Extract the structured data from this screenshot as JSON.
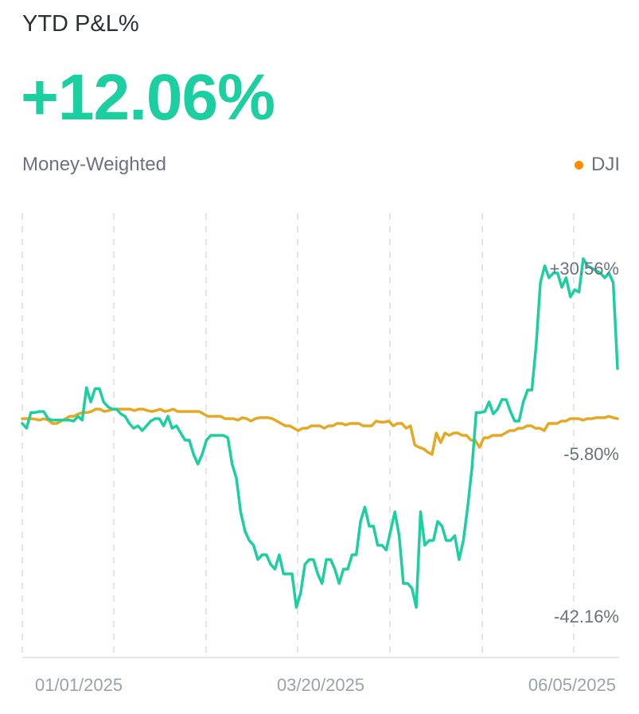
{
  "header": {
    "title": "YTD P&L%",
    "value": "+12.06%",
    "subtitle": "Money-Weighted",
    "legend_label": "DJI"
  },
  "colors": {
    "portfolio": "#1ccfa0",
    "benchmark": "#e5a823",
    "legend_dot": "#ff8c00",
    "grid": "#e3e5ea"
  },
  "chart_data": {
    "type": "line",
    "x_ticks": [
      "01/01/2025",
      "03/20/2025",
      "06/05/2025"
    ],
    "y_ticks": [
      "+30.56%",
      "-5.80%",
      "-42.16%"
    ],
    "y_tick_values": [
      30.56,
      -5.8,
      -42.16
    ],
    "grid": "vertical-dashed",
    "legend": "top-right",
    "series": [
      {
        "name": "",
        "color": "#1ccfa0",
        "values": [
          -1.5,
          -2.5,
          0.8,
          0.8,
          1.0,
          1.0,
          -0.5,
          -0.8,
          -0.8,
          -0.8,
          -0.8,
          -0.8,
          -1.0,
          0.0,
          -0.8,
          6.0,
          3.0,
          5.8,
          5.8,
          3.0,
          2.0,
          1.5,
          1.5,
          0.5,
          0.0,
          -1.5,
          -2.5,
          -2.0,
          -3.0,
          -2.0,
          -1.0,
          -0.5,
          -0.5,
          -2.0,
          0.0,
          -2.5,
          -2.0,
          -3.5,
          -5.0,
          -5.0,
          -8.0,
          -10.0,
          -8.0,
          -5.0,
          -4.0,
          -4.0,
          -4.0,
          -4.0,
          -4.5,
          -10.0,
          -13.0,
          -20.0,
          -24.0,
          -26.0,
          -27.0,
          -30.0,
          -29.0,
          -29.0,
          -31.0,
          -32.0,
          -29.0,
          -33.0,
          -33.0,
          -33.0,
          -40.0,
          -37.0,
          -31.0,
          -30.0,
          -30.0,
          -33.0,
          -35.0,
          -30.0,
          -30.0,
          -32.0,
          -35.0,
          -32.0,
          -32.0,
          -29.0,
          -29.0,
          -22.0,
          -19.0,
          -23.0,
          -23.0,
          -27.0,
          -27.0,
          -28.0,
          -24.0,
          -20.0,
          -25.0,
          -35.0,
          -35.0,
          -36.0,
          -40.0,
          -20.0,
          -27.0,
          -26.0,
          -26.0,
          -22.0,
          -23.0,
          -26.0,
          -26.0,
          -25.0,
          -30.0,
          -26.0,
          -19.0,
          -11.0,
          0.8,
          0.8,
          1.0,
          3.0,
          0.5,
          1.5,
          3.5,
          3.5,
          1.0,
          -1.0,
          -1.0,
          3.0,
          5.5,
          5.5,
          15.0,
          28.0,
          31.5,
          29.0,
          30.0,
          30.0,
          27.0,
          29.0,
          25.0,
          26.5,
          26.0,
          33.0,
          31.5,
          31.0,
          30.5,
          30.0,
          29.0,
          30.0,
          28.0,
          10.0
        ]
      },
      {
        "name": "DJI",
        "color": "#e5a823",
        "values": [
          -0.5,
          -0.5,
          -0.5,
          -0.6,
          -0.8,
          -0.5,
          -0.8,
          -1.5,
          -1.5,
          -1.0,
          -0.5,
          0.0,
          0.0,
          0.5,
          0.8,
          0.8,
          1.0,
          1.5,
          1.5,
          1.0,
          1.2,
          1.5,
          1.5,
          1.5,
          1.5,
          1.5,
          1.2,
          1.5,
          1.5,
          1.2,
          1.0,
          1.2,
          1.5,
          1.0,
          1.2,
          1.5,
          1.0,
          1.0,
          1.0,
          1.0,
          1.0,
          1.0,
          0.5,
          0.0,
          0.0,
          0.0,
          0.0,
          -0.5,
          -0.5,
          -0.5,
          -0.8,
          -0.3,
          -0.5,
          -1.0,
          -0.5,
          -0.3,
          -0.3,
          -0.3,
          -0.5,
          -1.0,
          -1.5,
          -2.0,
          -2.0,
          -2.5,
          -3.0,
          -2.5,
          -2.5,
          -2.0,
          -2.0,
          -2.0,
          -2.5,
          -2.0,
          -2.0,
          -1.5,
          -1.5,
          -1.8,
          -1.5,
          -1.5,
          -1.5,
          -2.0,
          -2.0,
          -2.0,
          -1.0,
          -1.2,
          -1.2,
          -1.0,
          -2.0,
          -1.5,
          -1.5,
          -2.5,
          -2.0,
          -6.0,
          -6.5,
          -6.8,
          -7.5,
          -8.0,
          -3.5,
          -5.5,
          -3.5,
          -4.0,
          -3.5,
          -3.5,
          -4.0,
          -4.0,
          -5.0,
          -5.0,
          -6.5,
          -4.5,
          -4.5,
          -4.0,
          -4.0,
          -4.0,
          -3.5,
          -3.0,
          -3.0,
          -2.5,
          -2.5,
          -2.0,
          -2.0,
          -2.5,
          -2.5,
          -3.0,
          -1.5,
          -1.5,
          -1.5,
          -1.0,
          -1.0,
          -0.5,
          -0.5,
          -0.5,
          -0.8,
          -0.5,
          -0.5,
          -0.3,
          -0.3,
          -0.3,
          0.0,
          -0.3,
          -0.5
        ]
      }
    ]
  }
}
